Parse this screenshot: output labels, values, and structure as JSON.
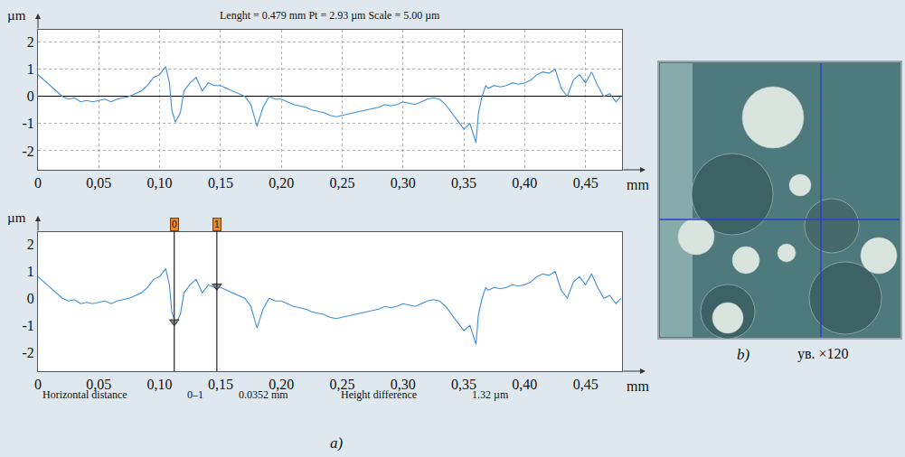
{
  "chart_data": [
    {
      "type": "line",
      "title": "Lenght = 0.479 mm Pt = 2.93 µm Scale = 5.00 µm",
      "x": [
        0,
        0.005,
        0.01,
        0.015,
        0.02,
        0.025,
        0.03,
        0.035,
        0.04,
        0.045,
        0.05,
        0.055,
        0.06,
        0.065,
        0.07,
        0.075,
        0.08,
        0.085,
        0.09,
        0.095,
        0.1,
        0.105,
        0.108,
        0.11,
        0.113,
        0.117,
        0.12,
        0.125,
        0.13,
        0.135,
        0.14,
        0.145,
        0.15,
        0.155,
        0.16,
        0.165,
        0.17,
        0.175,
        0.18,
        0.185,
        0.19,
        0.195,
        0.2,
        0.205,
        0.21,
        0.215,
        0.22,
        0.225,
        0.23,
        0.235,
        0.24,
        0.245,
        0.25,
        0.255,
        0.26,
        0.265,
        0.27,
        0.275,
        0.28,
        0.285,
        0.29,
        0.295,
        0.3,
        0.305,
        0.31,
        0.315,
        0.32,
        0.325,
        0.33,
        0.335,
        0.34,
        0.345,
        0.35,
        0.355,
        0.36,
        0.362,
        0.365,
        0.368,
        0.37,
        0.375,
        0.38,
        0.385,
        0.39,
        0.395,
        0.4,
        0.405,
        0.41,
        0.415,
        0.42,
        0.425,
        0.43,
        0.435,
        0.44,
        0.445,
        0.45,
        0.455,
        0.46,
        0.465,
        0.47,
        0.475,
        0.479
      ],
      "values": [
        0.8,
        0.6,
        0.4,
        0.2,
        0.0,
        -0.1,
        -0.05,
        -0.2,
        -0.15,
        -0.2,
        -0.15,
        -0.1,
        -0.2,
        -0.1,
        -0.05,
        0.0,
        0.1,
        0.2,
        0.4,
        0.7,
        0.8,
        1.1,
        0.5,
        -0.5,
        -0.95,
        -0.6,
        0.2,
        0.5,
        0.7,
        0.2,
        0.5,
        0.4,
        0.4,
        0.3,
        0.2,
        0.1,
        0.0,
        -0.3,
        -1.1,
        -0.4,
        0.0,
        -0.1,
        -0.1,
        -0.2,
        -0.3,
        -0.35,
        -0.4,
        -0.5,
        -0.55,
        -0.6,
        -0.7,
        -0.75,
        -0.7,
        -0.65,
        -0.6,
        -0.55,
        -0.5,
        -0.45,
        -0.4,
        -0.3,
        -0.35,
        -0.3,
        -0.2,
        -0.25,
        -0.3,
        -0.2,
        -0.1,
        -0.05,
        -0.1,
        -0.3,
        -0.6,
        -0.9,
        -1.2,
        -1.0,
        -1.7,
        -0.6,
        0.0,
        0.4,
        0.3,
        0.4,
        0.35,
        0.4,
        0.5,
        0.45,
        0.5,
        0.6,
        0.8,
        0.9,
        0.85,
        1.0,
        0.3,
        0.0,
        0.6,
        0.8,
        0.5,
        0.9,
        0.4,
        0.0,
        0.1,
        -0.2,
        0.0
      ],
      "color": "#3d8fd8",
      "xlim": [
        0,
        0.48
      ],
      "xticks": [
        0,
        {
          "value": 0.05,
          "label": "0,05"
        },
        {
          "value": 0.1,
          "label": "0,10"
        },
        {
          "value": 0.15,
          "label": "0,15"
        },
        {
          "value": 0.2,
          "label": "0,20"
        },
        {
          "value": 0.25,
          "label": "0,25"
        },
        {
          "value": 0.3,
          "label": "0,30"
        },
        {
          "value": 0.35,
          "label": "0,35"
        },
        {
          "value": 0.4,
          "label": "0,40"
        },
        {
          "value": 0.45,
          "label": "0,45"
        }
      ],
      "ylim": [
        -2.7,
        2.45
      ],
      "yticks": [
        -2,
        -1,
        0,
        1,
        2
      ],
      "xlabel": "mm",
      "ylabel": "µm",
      "grid": true
    },
    {
      "type": "line",
      "x": [
        0,
        0.005,
        0.01,
        0.015,
        0.02,
        0.025,
        0.03,
        0.035,
        0.04,
        0.045,
        0.05,
        0.055,
        0.06,
        0.065,
        0.07,
        0.075,
        0.08,
        0.085,
        0.09,
        0.095,
        0.1,
        0.105,
        0.108,
        0.11,
        0.113,
        0.117,
        0.12,
        0.125,
        0.13,
        0.135,
        0.14,
        0.145,
        0.15,
        0.155,
        0.16,
        0.165,
        0.17,
        0.175,
        0.18,
        0.185,
        0.19,
        0.195,
        0.2,
        0.205,
        0.21,
        0.215,
        0.22,
        0.225,
        0.23,
        0.235,
        0.24,
        0.245,
        0.25,
        0.255,
        0.26,
        0.265,
        0.27,
        0.275,
        0.28,
        0.285,
        0.29,
        0.295,
        0.3,
        0.305,
        0.31,
        0.315,
        0.32,
        0.325,
        0.33,
        0.335,
        0.34,
        0.345,
        0.35,
        0.355,
        0.36,
        0.362,
        0.365,
        0.368,
        0.37,
        0.375,
        0.38,
        0.385,
        0.39,
        0.395,
        0.4,
        0.405,
        0.41,
        0.415,
        0.42,
        0.425,
        0.43,
        0.435,
        0.44,
        0.445,
        0.45,
        0.455,
        0.46,
        0.465,
        0.47,
        0.475,
        0.479
      ],
      "values": [
        0.8,
        0.6,
        0.4,
        0.2,
        0.0,
        -0.1,
        -0.05,
        -0.2,
        -0.15,
        -0.2,
        -0.15,
        -0.1,
        -0.2,
        -0.1,
        -0.05,
        0.0,
        0.1,
        0.2,
        0.4,
        0.7,
        0.8,
        1.1,
        0.5,
        -0.5,
        -0.95,
        -0.6,
        0.2,
        0.5,
        0.7,
        0.2,
        0.5,
        0.4,
        0.4,
        0.3,
        0.2,
        0.1,
        0.0,
        -0.3,
        -1.1,
        -0.4,
        0.0,
        -0.1,
        -0.1,
        -0.2,
        -0.3,
        -0.35,
        -0.4,
        -0.5,
        -0.55,
        -0.6,
        -0.7,
        -0.75,
        -0.7,
        -0.65,
        -0.6,
        -0.55,
        -0.5,
        -0.45,
        -0.4,
        -0.3,
        -0.35,
        -0.3,
        -0.2,
        -0.25,
        -0.3,
        -0.2,
        -0.1,
        -0.05,
        -0.1,
        -0.3,
        -0.6,
        -0.9,
        -1.2,
        -1.0,
        -1.7,
        -0.6,
        0.0,
        0.4,
        0.3,
        0.4,
        0.35,
        0.4,
        0.5,
        0.45,
        0.5,
        0.6,
        0.8,
        0.9,
        0.85,
        1.0,
        0.3,
        0.0,
        0.6,
        0.8,
        0.5,
        0.9,
        0.4,
        0.0,
        0.1,
        -0.2,
        0.0
      ],
      "color": "#3d8fd8",
      "xlim": [
        0,
        0.48
      ],
      "xticks": [
        0,
        {
          "value": 0.05,
          "label": "0,05"
        },
        {
          "value": 0.1,
          "label": "0,10"
        },
        {
          "value": 0.15,
          "label": "0,15"
        },
        {
          "value": 0.2,
          "label": "0,20"
        },
        {
          "value": 0.25,
          "label": "0,25"
        },
        {
          "value": 0.3,
          "label": "0,30"
        },
        {
          "value": 0.35,
          "label": "0,35"
        },
        {
          "value": 0.4,
          "label": "0,40"
        },
        {
          "value": 0.45,
          "label": "0,45"
        }
      ],
      "ylim": [
        -2.7,
        2.45
      ],
      "yticks": [
        -2,
        -1,
        0,
        1,
        2
      ],
      "xlabel": "mm",
      "ylabel": "µm",
      "grid": false,
      "annotations": [
        {
          "text": "0",
          "x": 0.112,
          "y": -0.87
        },
        {
          "text": "1",
          "x": 0.147,
          "y": 0.45
        }
      ],
      "footer": [
        "Horizontal distance",
        "0–1",
        "0.0352 mm",
        "Height difference",
        "1.32 µm"
      ]
    }
  ],
  "figure_label": "a)",
  "image": {
    "label": "b)",
    "caption": "ув. ×120"
  }
}
